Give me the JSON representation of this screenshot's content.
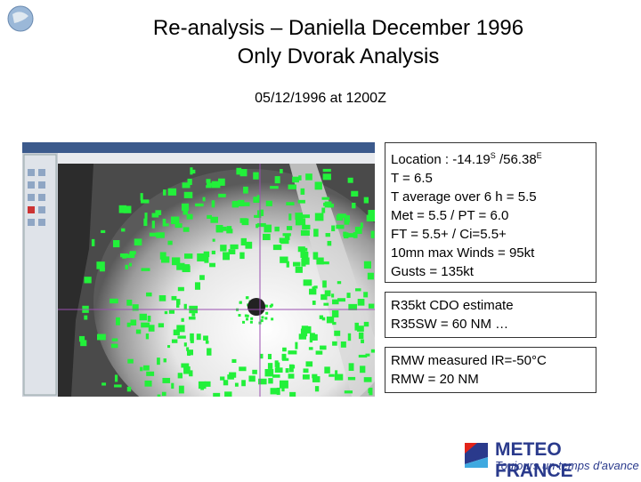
{
  "title": [
    "Re-analysis – Daniella December 1996",
    "Only Dvorak Analysis"
  ],
  "date": "05/12/1996 at 1200Z",
  "info_box": {
    "location": {
      "label": "Location : ",
      "lat": "-14.19",
      "lat_hemisphere": "S",
      "separator": " /",
      "lon": "56.38",
      "lon_hemisphere": "E"
    },
    "lines": [
      "T  = 6.5",
      "T average over 6 h = 5.5",
      "Met = 5.5 / PT = 6.0",
      "FT = 5.5+ / Ci=5.5+",
      "10mn max Winds = 95kt",
      "Gusts = 135kt"
    ]
  },
  "cdo_box": {
    "lines": [
      "R35kt CDO estimate",
      "R35SW = 60 NM …"
    ]
  },
  "rmw_box": {
    "lines": [
      "RMW measured IR=-50°C",
      "RMW = 20 NM"
    ]
  },
  "logo": {
    "name": "METEO FRANCE",
    "tagline": "Toujours un temps d'avance"
  }
}
